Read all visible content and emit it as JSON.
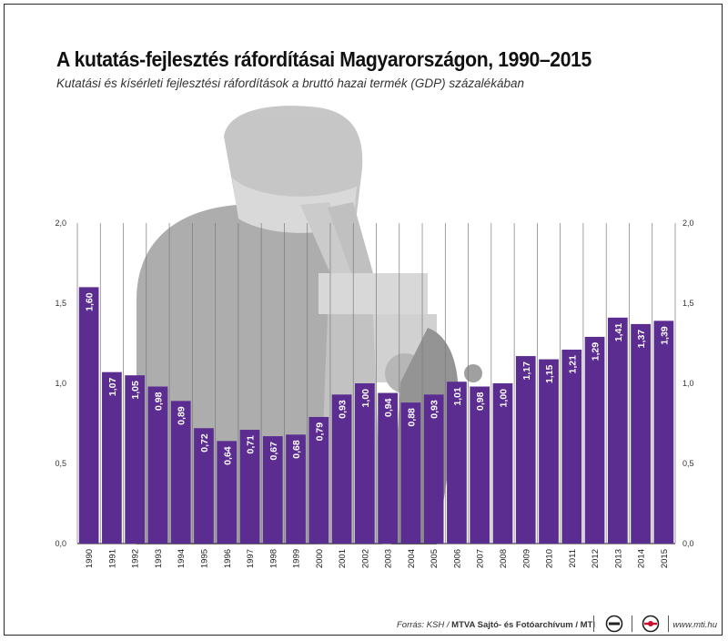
{
  "header": {
    "title": "A kutatás-fejlesztés ráfordításai Magyarországon, 1990–2015",
    "subtitle": "Kutatási és kísérleti fejlesztési ráfordítások a bruttó hazai termék (GDP) százalékában"
  },
  "footer": {
    "source_prefix": "Forrás: KSH / ",
    "source_agency": "MTVA Sajtó- és Fotóarchívum / MTI",
    "website": "www.mti.hu"
  },
  "colors": {
    "bar": "#5c2d91",
    "label": "#ffffff",
    "axis": "#333333",
    "gridline": "#7a7a7a"
  },
  "chart_data": {
    "type": "bar",
    "title": "A kutatás-fejlesztés ráfordításai Magyarországon, 1990–2015",
    "subtitle": "Kutatási és kísérleti fejlesztési ráfordítások a bruttó hazai termék (GDP) százalékában",
    "xlabel": "",
    "ylabel": "",
    "ylim": [
      0,
      2.0
    ],
    "yticks": [
      "0,0",
      "0,5",
      "1,0",
      "1,5",
      "2,0"
    ],
    "grid": true,
    "categories": [
      "1990",
      "1991",
      "1992",
      "1993",
      "1994",
      "1995",
      "1996",
      "1997",
      "1998",
      "1999",
      "2000",
      "2001",
      "2002",
      "2003",
      "2004",
      "2005",
      "2006",
      "2007",
      "2008",
      "2009",
      "2010",
      "2011",
      "2012",
      "2013",
      "2014",
      "2015"
    ],
    "values": [
      1.6,
      1.07,
      1.05,
      0.98,
      0.89,
      0.72,
      0.64,
      0.71,
      0.67,
      0.68,
      0.79,
      0.93,
      1.0,
      0.94,
      0.88,
      0.93,
      1.01,
      0.98,
      1.0,
      1.17,
      1.15,
      1.21,
      1.29,
      1.41,
      1.37,
      1.39
    ],
    "value_labels": [
      "1,60",
      "1,07",
      "1,05",
      "0,98",
      "0,89",
      "0,72",
      "0,64",
      "0,71",
      "0,67",
      "0,68",
      "0,79",
      "0,93",
      "1,00",
      "0,94",
      "0,88",
      "0,93",
      "1,01",
      "0,98",
      "1,00",
      "1,17",
      "1,15",
      "1,21",
      "1,29",
      "1,41",
      "1,37",
      "1,39"
    ]
  }
}
